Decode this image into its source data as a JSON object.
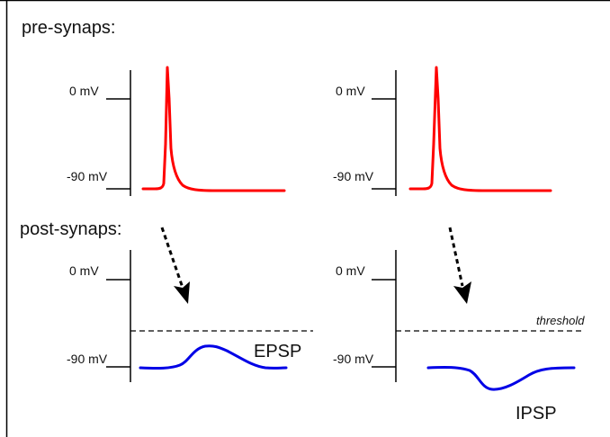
{
  "labels": {
    "pre_title": "pre-synaps:",
    "post_title": "post-synaps:",
    "zero_mv": "0 mV",
    "minus90_mv": "-90 mV",
    "threshold": "threshold",
    "epsp": "EPSP",
    "ipsp": "IPSP"
  },
  "colors": {
    "action_potential": "#ff0000",
    "postsynaptic_potential": "#0000e6",
    "axis": "#000000",
    "arrow": "#000000"
  }
}
